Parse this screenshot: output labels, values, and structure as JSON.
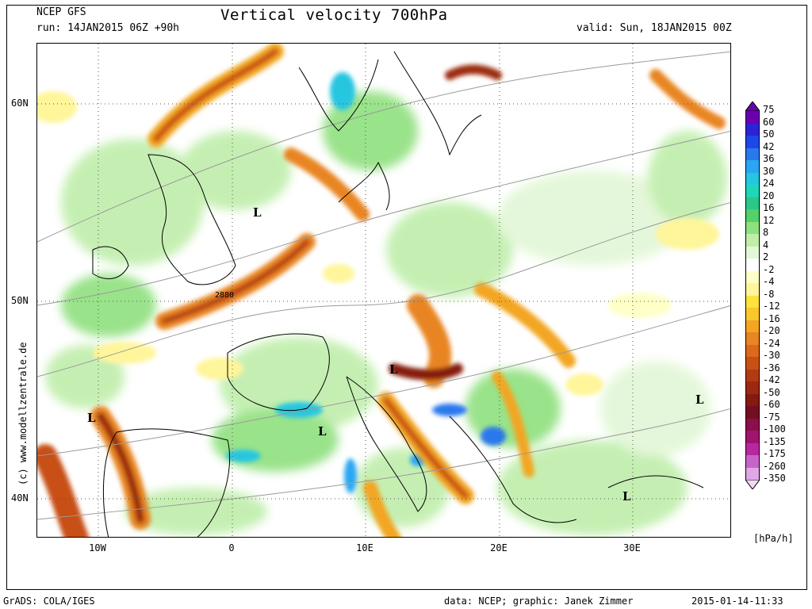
{
  "header": {
    "model": "NCEP GFS",
    "run": "run: 14JAN2015 06Z +90h",
    "title": "Vertical velocity 700hPa",
    "valid": "valid: Sun, 18JAN2015 00Z"
  },
  "map": {
    "lon_range": [
      -15,
      37
    ],
    "lat_range": [
      37.8,
      63.3
    ],
    "x_ticks": [
      "10W",
      "0",
      "10E",
      "20E",
      "30E"
    ],
    "y_ticks": [
      "60N",
      "50N",
      "40N"
    ],
    "low_symbol": "L",
    "contour_label": "2880"
  },
  "legend": {
    "unit": "[hPa/h]",
    "levels": [
      "75",
      "60",
      "50",
      "42",
      "36",
      "30",
      "24",
      "20",
      "16",
      "12",
      "8",
      "4",
      "2",
      "-2",
      "-4",
      "-8",
      "-12",
      "-16",
      "-20",
      "-24",
      "-30",
      "-36",
      "-42",
      "-50",
      "-60",
      "-75",
      "-100",
      "-135",
      "-175",
      "-260",
      "-350"
    ],
    "colors": [
      "#6a00b0",
      "#2e22d8",
      "#1d47e6",
      "#2a78ee",
      "#29a7f2",
      "#25c6e0",
      "#1fd6b6",
      "#29c788",
      "#54d16a",
      "#8fe07e",
      "#bfeeaa",
      "#e2f7d6",
      "#ffffff",
      "#ffffc8",
      "#fff59a",
      "#ffe23a",
      "#f9c82c",
      "#f2a624",
      "#e88524",
      "#db6a1c",
      "#c85015",
      "#b33b13",
      "#9b2a10",
      "#851a10",
      "#720f22",
      "#8a0f4a",
      "#a0146e",
      "#b628a0",
      "#c864c8",
      "#e0a6e6",
      "#f3d8f3"
    ]
  },
  "footer": {
    "software": "GrADS: COLA/IGES",
    "credit": "data: NCEP; graphic: Janek Zimmer",
    "timestamp": "2015-01-14-11:33",
    "vertical_credit": "(c)  www.modellzentrale.de"
  }
}
